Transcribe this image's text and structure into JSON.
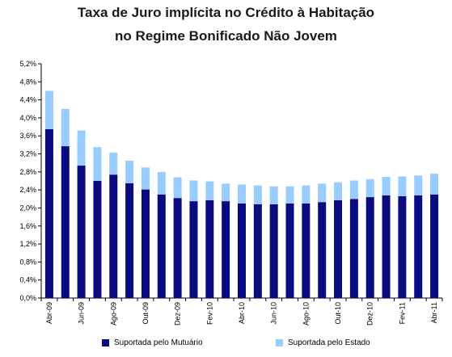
{
  "chart_data": {
    "type": "bar",
    "stacked": true,
    "title": "Taxa de Juro implícita no Crédito à Habitação",
    "subtitle": "no Regime Bonificado Não Jovem",
    "xlabel": "",
    "ylabel": "",
    "ylim": [
      0,
      5.2
    ],
    "yticks": [
      "0,0%",
      "0,4%",
      "0,8%",
      "1,2%",
      "1,6%",
      "2,0%",
      "2,4%",
      "2,8%",
      "3,2%",
      "3,6%",
      "4,0%",
      "4,4%",
      "4,8%",
      "5,2%"
    ],
    "categories": [
      "Abr-09",
      "Mai-09",
      "Jun-09",
      "Jul-09",
      "Ago-09",
      "Set-09",
      "Out-09",
      "Nov-09",
      "Dez-09",
      "Jan-10",
      "Fev-10",
      "Mar-10",
      "Abr-10",
      "Mai-10",
      "Jun-10",
      "Jul-10",
      "Ago-10",
      "Set-10",
      "Out-10",
      "Nov-10",
      "Dez-10",
      "Jan-11",
      "Fev-11",
      "Mar-11",
      "Abr-11"
    ],
    "visible_xtick_labels": [
      "Abr-09",
      "Jun-09",
      "Ago-09",
      "Out-09",
      "Dez-09",
      "Fev-10",
      "Abr-10",
      "Jun-10",
      "Ago-10",
      "Out-10",
      "Dez-10",
      "Fev-11",
      "Abr-11"
    ],
    "series": [
      {
        "name": "Suportada pelo Mutuário",
        "color": "#0b0b80",
        "values": [
          3.75,
          3.37,
          2.94,
          2.6,
          2.74,
          2.55,
          2.41,
          2.3,
          2.22,
          2.15,
          2.17,
          2.15,
          2.1,
          2.08,
          2.08,
          2.1,
          2.1,
          2.13,
          2.17,
          2.2,
          2.24,
          2.28,
          2.26,
          2.28,
          2.3
        ]
      },
      {
        "name": "Suportada pelo Estado",
        "color": "#99ccff",
        "values": [
          0.85,
          0.83,
          0.78,
          0.75,
          0.49,
          0.5,
          0.49,
          0.5,
          0.46,
          0.46,
          0.42,
          0.39,
          0.42,
          0.42,
          0.4,
          0.38,
          0.4,
          0.41,
          0.4,
          0.41,
          0.4,
          0.41,
          0.44,
          0.44,
          0.46
        ]
      }
    ],
    "grid": false,
    "legend_position": "bottom"
  }
}
